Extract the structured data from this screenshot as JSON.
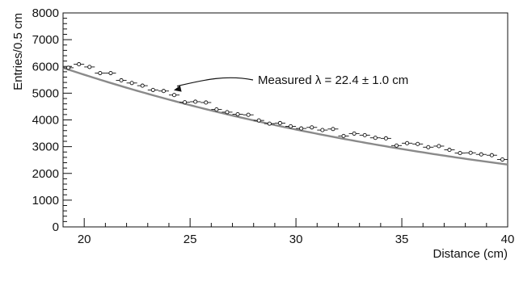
{
  "chart_data": {
    "type": "scatter",
    "xlabel": "Distance (cm)",
    "ylabel": "Entries/0.5 cm",
    "xlim": [
      19,
      40
    ],
    "ylim": [
      0,
      8000
    ],
    "xticks": [
      20,
      25,
      30,
      35,
      40
    ],
    "yticks": [
      0,
      1000,
      2000,
      3000,
      4000,
      5000,
      6000,
      7000,
      8000
    ],
    "x_bin_width": 0.5,
    "grid": false,
    "series": [
      {
        "kind": "points_with_xerr",
        "x": [
          19.25,
          19.75,
          20.25,
          20.75,
          21.25,
          21.75,
          22.25,
          22.75,
          23.25,
          23.75,
          24.25,
          24.75,
          25.25,
          25.75,
          26.25,
          26.75,
          27.25,
          27.75,
          28.25,
          28.75,
          29.25,
          29.75,
          30.25,
          30.75,
          31.25,
          31.75,
          32.25,
          32.75,
          33.25,
          33.75,
          34.25,
          34.75,
          35.25,
          35.75,
          36.25,
          36.75,
          37.25,
          37.75,
          38.25,
          38.75,
          39.25,
          39.75
        ],
        "y": [
          5950,
          6080,
          5980,
          5750,
          5750,
          5480,
          5380,
          5280,
          5120,
          5080,
          4930,
          4660,
          4680,
          4650,
          4390,
          4290,
          4210,
          4190,
          3980,
          3860,
          3880,
          3760,
          3680,
          3720,
          3620,
          3660,
          3400,
          3490,
          3430,
          3330,
          3310,
          3040,
          3130,
          3100,
          2980,
          3020,
          2880,
          2760,
          2770,
          2710,
          2680,
          2520
        ]
      },
      {
        "kind": "fit_curve",
        "model": "exponential",
        "x_start": 19,
        "x_end": 40,
        "y_start": 5950,
        "lambda_cm": 22.4
      }
    ],
    "annotation": {
      "text": "Measured λ = 22.4 ± 1.0 cm",
      "arrow_target": {
        "x": 24.0,
        "y": 5050
      }
    }
  }
}
